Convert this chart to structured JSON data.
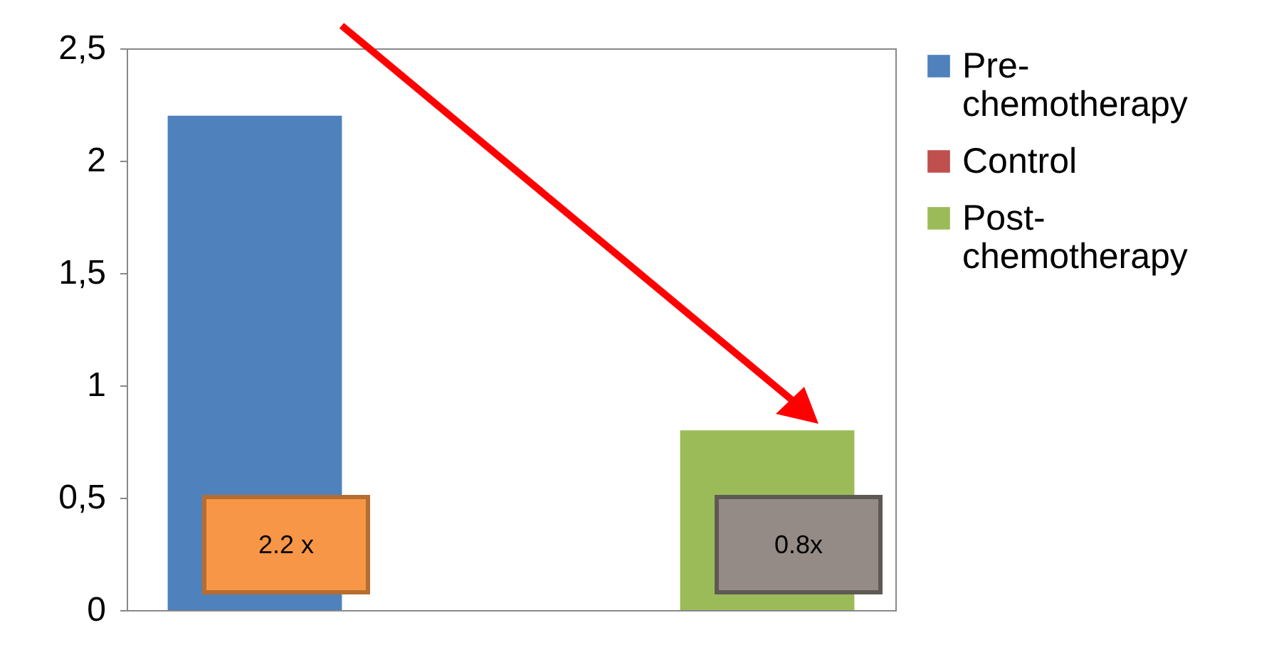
{
  "chart_data": {
    "type": "bar",
    "categories": [
      null
    ],
    "series": [
      {
        "name": "Pre-chemotherapy",
        "color": "#4f81bd",
        "values": [
          2.2
        ]
      },
      {
        "name": "Control",
        "color": "#c0504d",
        "values": [
          null
        ]
      },
      {
        "name": "Post-chemotherapy",
        "color": "#9bbb59",
        "values": [
          0.8
        ]
      }
    ],
    "ylim": [
      0,
      2.5
    ],
    "yticks": [
      {
        "value": 0,
        "label": "0"
      },
      {
        "value": 0.5,
        "label": "0,5"
      },
      {
        "value": 1,
        "label": "1"
      },
      {
        "value": 1.5,
        "label": "1,5"
      },
      {
        "value": 2,
        "label": "2"
      },
      {
        "value": 2.5,
        "label": "2,5"
      }
    ],
    "legend": "right",
    "annotations": [
      "2.2 x",
      "0.8x"
    ]
  }
}
